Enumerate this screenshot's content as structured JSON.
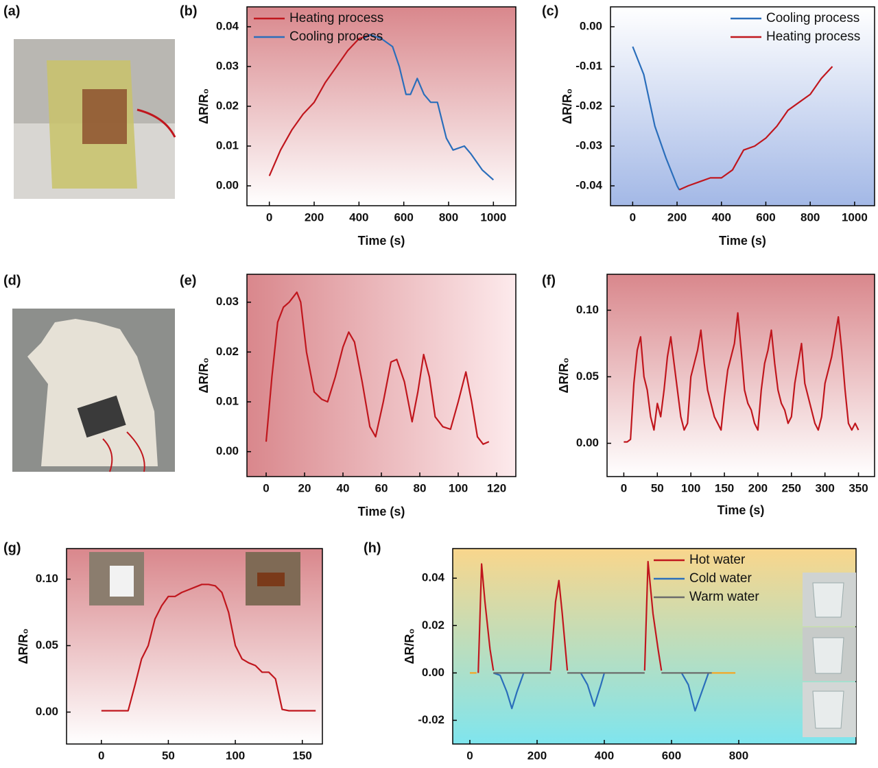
{
  "photo_labels": [
    "(a)",
    "(d)"
  ],
  "chart_data": [
    {
      "type": "line",
      "panel": "(b)",
      "xlabel": "Time (s)",
      "ylabel": "ΔR/R₀",
      "xlim": [
        -100,
        1100
      ],
      "ylim": [
        -0.005,
        0.045
      ],
      "xticks": [
        0,
        200,
        400,
        600,
        800,
        1000
      ],
      "yticks": [
        {
          "value": 0,
          "label": "0.00"
        },
        0.01,
        0.02,
        0.03,
        0.04
      ],
      "legend": "upper left",
      "background": {
        "from": "#d9878c",
        "to": "#ffffff",
        "direction": "down"
      },
      "series": [
        {
          "name": "Heating process",
          "color": "#c0161d",
          "x": [
            0,
            50,
            100,
            150,
            200,
            250,
            300,
            350,
            400,
            450
          ],
          "values": [
            0.0025,
            0.009,
            0.014,
            0.018,
            0.021,
            0.026,
            0.03,
            0.034,
            0.037,
            0.038
          ]
        },
        {
          "name": "Cooling process",
          "color": "#2a6ebb",
          "x": [
            420,
            450,
            500,
            550,
            580,
            610,
            630,
            660,
            690,
            720,
            750,
            790,
            820,
            870,
            900,
            950,
            1000
          ],
          "values": [
            0.037,
            0.038,
            0.037,
            0.035,
            0.03,
            0.023,
            0.023,
            0.027,
            0.023,
            0.021,
            0.021,
            0.012,
            0.009,
            0.01,
            0.008,
            0.004,
            0.0015
          ]
        }
      ]
    },
    {
      "type": "line",
      "panel": "(c)",
      "xlabel": "Time (s)",
      "ylabel": "ΔR/R₀",
      "xlim": [
        -100,
        1090
      ],
      "ylim": [
        -0.045,
        0.005
      ],
      "xticks": [
        0,
        200,
        400,
        600,
        800,
        1000
      ],
      "yticks": [
        {
          "value": 0,
          "label": "0.00"
        },
        -0.01,
        -0.02,
        -0.03,
        -0.04
      ],
      "legend": "upper right",
      "background": {
        "from": "#ffffff",
        "to": "#a3b8e6",
        "direction": "down"
      },
      "series": [
        {
          "name": "Cooling process",
          "color": "#2a6ebb",
          "x": [
            0,
            50,
            100,
            150,
            200,
            210
          ],
          "values": [
            -0.005,
            -0.012,
            -0.025,
            -0.033,
            -0.04,
            -0.041
          ]
        },
        {
          "name": "Heating process",
          "color": "#c0161d",
          "x": [
            210,
            250,
            300,
            350,
            400,
            450,
            500,
            550,
            600,
            650,
            700,
            750,
            800,
            850,
            900
          ],
          "values": [
            -0.041,
            -0.04,
            -0.039,
            -0.038,
            -0.038,
            -0.036,
            -0.031,
            -0.03,
            -0.028,
            -0.025,
            -0.021,
            -0.019,
            -0.017,
            -0.013,
            -0.01
          ]
        }
      ]
    },
    {
      "type": "line",
      "panel": "(e)",
      "xlabel": "Time (s)",
      "ylabel": "ΔR/R₀",
      "xlim": [
        -10,
        130
      ],
      "ylim": [
        -0.005,
        0.0356
      ],
      "xticks": [
        0,
        20,
        40,
        60,
        80,
        100,
        120
      ],
      "yticks": [
        {
          "value": 0,
          "label": "0.00"
        },
        0.01,
        0.02,
        0.03
      ],
      "background": {
        "from": "#d9878c",
        "to": "#fdeaec",
        "direction": "right"
      },
      "color": "#c0161d",
      "x": [
        0,
        3,
        6,
        9,
        12,
        16,
        18,
        21,
        25,
        29,
        32,
        36,
        40,
        43,
        46,
        50,
        54,
        57,
        61,
        65,
        68,
        72,
        76,
        79,
        82,
        85,
        88,
        92,
        96,
        100,
        104,
        107,
        110,
        113,
        116
      ],
      "values": [
        0.002,
        0.015,
        0.026,
        0.029,
        0.03,
        0.032,
        0.03,
        0.02,
        0.012,
        0.0105,
        0.01,
        0.015,
        0.021,
        0.024,
        0.022,
        0.014,
        0.005,
        0.003,
        0.01,
        0.018,
        0.0185,
        0.014,
        0.006,
        0.012,
        0.0195,
        0.015,
        0.007,
        0.005,
        0.0045,
        0.01,
        0.016,
        0.01,
        0.003,
        0.0015,
        0.002
      ]
    },
    {
      "type": "line",
      "panel": "(f)",
      "xlabel": "Time (s)",
      "ylabel": "ΔR/R₀",
      "xlim": [
        -25,
        374
      ],
      "ylim": [
        -0.025,
        0.127
      ],
      "xticks": [
        0,
        50,
        100,
        150,
        200,
        250,
        300,
        350
      ],
      "yticks": [
        {
          "value": 0,
          "label": "0.00"
        },
        0.05,
        {
          "value": 0.1,
          "label": "0.10"
        }
      ],
      "background": {
        "from": "#d9878c",
        "to": "#ffffff",
        "direction": "down"
      },
      "color": "#c0161d",
      "x": [
        0,
        5,
        10,
        15,
        20,
        25,
        30,
        35,
        40,
        45,
        50,
        55,
        60,
        65,
        70,
        75,
        80,
        85,
        90,
        95,
        100,
        105,
        110,
        115,
        120,
        125,
        130,
        135,
        140,
        145,
        150,
        155,
        160,
        165,
        170,
        175,
        180,
        185,
        190,
        195,
        200,
        205,
        210,
        215,
        220,
        225,
        230,
        235,
        240,
        245,
        250,
        255,
        260,
        265,
        270,
        275,
        280,
        285,
        290,
        295,
        300,
        305,
        310,
        315,
        320,
        325,
        330,
        335,
        340,
        345,
        350
      ],
      "values": [
        0.001,
        0.001,
        0.003,
        0.045,
        0.07,
        0.08,
        0.05,
        0.04,
        0.02,
        0.01,
        0.03,
        0.02,
        0.04,
        0.065,
        0.08,
        0.06,
        0.04,
        0.02,
        0.01,
        0.015,
        0.05,
        0.06,
        0.07,
        0.085,
        0.06,
        0.04,
        0.03,
        0.02,
        0.015,
        0.01,
        0.035,
        0.055,
        0.065,
        0.075,
        0.098,
        0.07,
        0.04,
        0.03,
        0.025,
        0.015,
        0.01,
        0.04,
        0.06,
        0.07,
        0.085,
        0.06,
        0.04,
        0.03,
        0.025,
        0.015,
        0.02,
        0.045,
        0.06,
        0.075,
        0.045,
        0.035,
        0.025,
        0.015,
        0.01,
        0.02,
        0.045,
        0.055,
        0.065,
        0.08,
        0.095,
        0.07,
        0.04,
        0.015,
        0.01,
        0.015,
        0.01
      ]
    },
    {
      "type": "line",
      "panel": "(g)",
      "ylabel": "ΔR/R₀",
      "xlim": [
        -26,
        165
      ],
      "ylim": [
        -0.024,
        0.123
      ],
      "xticks": [
        0,
        50,
        100,
        150
      ],
      "yticks": [
        {
          "value": 0,
          "label": "0.00"
        },
        0.05,
        {
          "value": 0.1,
          "label": "0.10"
        }
      ],
      "background": {
        "from": "#d9878c",
        "to": "#ffffff",
        "direction": "down"
      },
      "color": "#c0161d",
      "x": [
        0,
        5,
        10,
        15,
        20,
        25,
        30,
        35,
        40,
        45,
        50,
        55,
        60,
        65,
        70,
        75,
        80,
        85,
        90,
        95,
        100,
        105,
        110,
        115,
        120,
        125,
        130,
        135,
        140,
        145,
        150,
        155,
        160
      ],
      "values": [
        0.001,
        0.001,
        0.001,
        0.001,
        0.001,
        0.02,
        0.04,
        0.05,
        0.07,
        0.08,
        0.087,
        0.087,
        0.09,
        0.092,
        0.094,
        0.096,
        0.096,
        0.095,
        0.09,
        0.075,
        0.05,
        0.04,
        0.037,
        0.035,
        0.03,
        0.03,
        0.025,
        0.002,
        0.001,
        0.001,
        0.001,
        0.001,
        0.001
      ]
    },
    {
      "type": "line",
      "panel": "(h)",
      "ylabel": "ΔR/R₀",
      "xlim": [
        -51,
        1149
      ],
      "ylim": [
        -0.03,
        0.0525
      ],
      "xticks": [
        0,
        200,
        400,
        600,
        800
      ],
      "yticks": [
        -0.02,
        {
          "value": 0,
          "label": "0.00"
        },
        0.02,
        0.04
      ],
      "legend": "upper right",
      "background": {
        "from": "#f9d68c",
        "to": "#7fe5ee",
        "direction": "down"
      },
      "series": [
        {
          "name": "Hot water",
          "color": "#c0161d",
          "x": [
            25,
            35,
            45,
            60,
            70,
            null,
            240,
            255,
            265,
            275,
            290,
            null,
            520,
            530,
            545,
            560,
            570
          ],
          "values": [
            0,
            0.046,
            0.03,
            0.01,
            0.001,
            null,
            0.001,
            0.03,
            0.039,
            0.025,
            0.001,
            null,
            0.001,
            0.047,
            0.025,
            0.01,
            0.001
          ]
        },
        {
          "name": "Cold water",
          "color": "#2a6ebb",
          "x": [
            70,
            90,
            110,
            125,
            140,
            160,
            null,
            330,
            350,
            370,
            390,
            400,
            null,
            630,
            650,
            670,
            690,
            710
          ],
          "values": [
            0,
            -0.001,
            -0.008,
            -0.015,
            -0.008,
            0,
            null,
            0,
            -0.005,
            -0.014,
            -0.005,
            0,
            null,
            0,
            -0.005,
            -0.016,
            -0.008,
            0
          ]
        },
        {
          "name": "Warm water",
          "color": "#6b6b6b",
          "x": [
            70,
            240,
            null,
            290,
            520,
            null,
            570,
            720
          ],
          "values": [
            0,
            0,
            null,
            0,
            0,
            null,
            0,
            0
          ]
        },
        {
          "color": "#f5a623",
          "x": [
            0,
            20,
            null,
            720,
            790
          ],
          "values": [
            0,
            0,
            null,
            0,
            0
          ]
        }
      ]
    }
  ]
}
